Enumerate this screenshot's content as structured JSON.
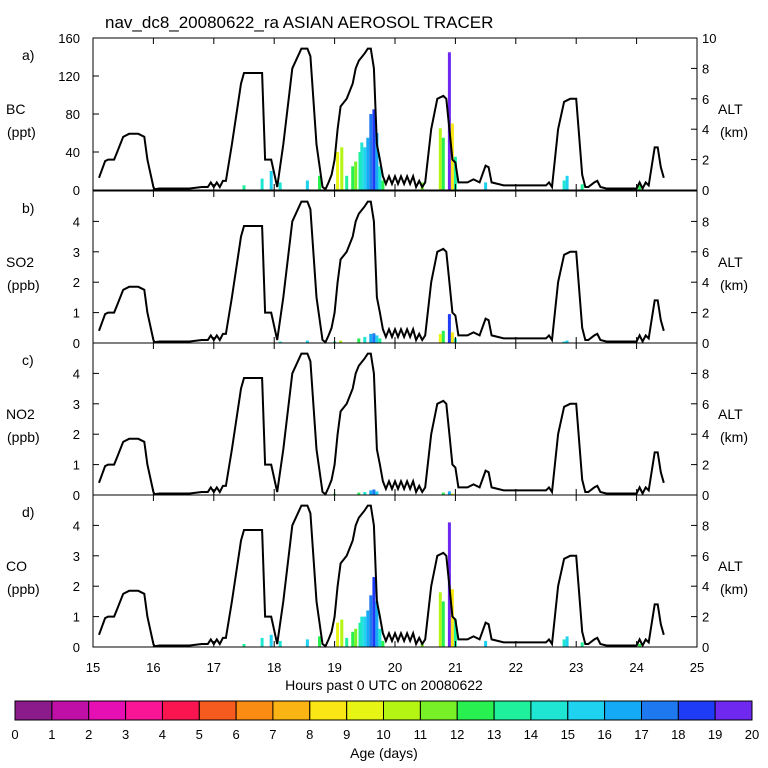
{
  "chart_data": {
    "type": "line",
    "title": "nav_dc8_20080622_ra ASIAN AEROSOL TRACER",
    "xlabel": "Hours past 0 UTC on 20080622",
    "xlim": [
      15,
      25
    ],
    "x_ticks": [
      15,
      16,
      17,
      18,
      19,
      20,
      21,
      22,
      23,
      24,
      25
    ],
    "right_axis": {
      "label": "ALT",
      "units": "(km)",
      "ylim": [
        0,
        10
      ]
    },
    "altitude_km": {
      "x": [
        15.1,
        15.2,
        15.25,
        15.35,
        15.4,
        15.5,
        15.6,
        15.75,
        15.85,
        15.9,
        16.0,
        16.02,
        16.1,
        16.6,
        16.8,
        16.9,
        16.95,
        17.0,
        17.05,
        17.1,
        17.15,
        17.2,
        17.3,
        17.45,
        17.5,
        17.6,
        17.8,
        17.85,
        17.95,
        18.05,
        18.15,
        18.3,
        18.45,
        18.55,
        18.6,
        18.7,
        18.8,
        18.85,
        18.9,
        18.95,
        19.0,
        19.05,
        19.1,
        19.2,
        19.3,
        19.35,
        19.4,
        19.5,
        19.55,
        19.6,
        19.65,
        19.7,
        19.75,
        19.8,
        19.85,
        19.9,
        19.95,
        20.0,
        20.05,
        20.1,
        20.15,
        20.2,
        20.25,
        20.3,
        20.35,
        20.4,
        20.45,
        20.5,
        20.6,
        20.7,
        20.8,
        20.85,
        20.9,
        20.95,
        21.0,
        21.05,
        21.1,
        21.2,
        21.3,
        21.4,
        21.5,
        21.55,
        21.6,
        21.7,
        21.8,
        22.0,
        22.2,
        22.3,
        22.4,
        22.5,
        22.55,
        22.6,
        22.7,
        22.8,
        22.9,
        23.0,
        23.1,
        23.15,
        23.2,
        23.3,
        23.35,
        23.4,
        23.5,
        23.7,
        23.8,
        24.0,
        24.05,
        24.1,
        24.15,
        24.2,
        24.3,
        24.35,
        24.4,
        24.45
      ],
      "y": [
        0.8,
        1.9,
        2.0,
        2.0,
        2.5,
        3.5,
        3.7,
        3.7,
        3.5,
        2.0,
        0.2,
        0.05,
        0.1,
        0.1,
        0.2,
        0.2,
        0.5,
        0.2,
        0.5,
        0.2,
        0.6,
        0.6,
        3.0,
        7.0,
        7.7,
        7.7,
        7.7,
        2.0,
        2.0,
        0.2,
        3.0,
        8.0,
        9.3,
        9.3,
        8.8,
        3.0,
        0.2,
        0.05,
        0.5,
        1.0,
        2.0,
        4.0,
        5.5,
        6.0,
        7.0,
        8.0,
        8.5,
        9.0,
        9.3,
        9.3,
        8.0,
        3.0,
        2.0,
        0.9,
        0.4,
        0.9,
        0.4,
        0.9,
        0.4,
        0.9,
        0.4,
        0.9,
        0.4,
        0.9,
        0.2,
        0.6,
        0.2,
        0.5,
        4.0,
        6.0,
        6.2,
        6.0,
        4.0,
        2.0,
        1.8,
        0.5,
        0.5,
        0.5,
        0.7,
        0.5,
        1.6,
        1.5,
        0.5,
        0.4,
        0.3,
        0.3,
        0.3,
        0.3,
        0.3,
        0.3,
        0.5,
        0.2,
        4.0,
        5.8,
        6.0,
        6.0,
        1.0,
        0.2,
        0.2,
        0.5,
        0.6,
        0.2,
        0.1,
        0.1,
        0.1,
        0.1,
        0.5,
        0.1,
        0.5,
        0.3,
        2.8,
        2.8,
        1.5,
        0.8
      ]
    },
    "panels": [
      {
        "label": "a)",
        "species": "BC",
        "units": "(ppt)",
        "ylim": [
          0,
          160
        ],
        "y_ticks": [
          0,
          40,
          80,
          120,
          160
        ],
        "tracer_bars": [
          {
            "x": 17.5,
            "v": 5,
            "age": 13
          },
          {
            "x": 17.8,
            "v": 12,
            "age": 14
          },
          {
            "x": 17.95,
            "v": 20,
            "age": 15
          },
          {
            "x": 18.1,
            "v": 8,
            "age": 14
          },
          {
            "x": 18.55,
            "v": 10,
            "age": 15
          },
          {
            "x": 18.75,
            "v": 15,
            "age": 12
          },
          {
            "x": 19.05,
            "v": 40,
            "age": 9
          },
          {
            "x": 19.12,
            "v": 45,
            "age": 10
          },
          {
            "x": 19.2,
            "v": 15,
            "age": 13
          },
          {
            "x": 19.3,
            "v": 25,
            "age": 12
          },
          {
            "x": 19.35,
            "v": 30,
            "age": 11
          },
          {
            "x": 19.42,
            "v": 40,
            "age": 13
          },
          {
            "x": 19.45,
            "v": 50,
            "age": 14
          },
          {
            "x": 19.5,
            "v": 45,
            "age": 15
          },
          {
            "x": 19.55,
            "v": 55,
            "age": 16
          },
          {
            "x": 19.6,
            "v": 80,
            "age": 17
          },
          {
            "x": 19.65,
            "v": 85,
            "age": 18
          },
          {
            "x": 19.7,
            "v": 60,
            "age": 16
          },
          {
            "x": 19.75,
            "v": 25,
            "age": 14
          },
          {
            "x": 19.8,
            "v": 10,
            "age": 12
          },
          {
            "x": 20.45,
            "v": 8,
            "age": 11
          },
          {
            "x": 20.75,
            "v": 65,
            "age": 10
          },
          {
            "x": 20.8,
            "v": 55,
            "age": 12
          },
          {
            "x": 20.9,
            "v": 145,
            "age": 19
          },
          {
            "x": 20.95,
            "v": 70,
            "age": 8
          },
          {
            "x": 21.0,
            "v": 35,
            "age": 13
          },
          {
            "x": 21.5,
            "v": 8,
            "age": 15
          },
          {
            "x": 22.8,
            "v": 10,
            "age": 14
          },
          {
            "x": 22.85,
            "v": 15,
            "age": 15
          },
          {
            "x": 23.1,
            "v": 6,
            "age": 13
          },
          {
            "x": 24.05,
            "v": 5,
            "age": 12
          }
        ]
      },
      {
        "label": "b)",
        "species": "SO2",
        "units": "(ppb)",
        "ylim": [
          0,
          5
        ],
        "y_ticks": [
          0,
          1,
          2,
          3,
          4
        ],
        "tracer_bars": [
          {
            "x": 18.1,
            "v": 0.05,
            "age": 14
          },
          {
            "x": 18.55,
            "v": 0.08,
            "age": 15
          },
          {
            "x": 19.0,
            "v": 0.05,
            "age": 13
          },
          {
            "x": 19.1,
            "v": 0.08,
            "age": 10
          },
          {
            "x": 19.4,
            "v": 0.15,
            "age": 12
          },
          {
            "x": 19.5,
            "v": 0.2,
            "age": 14
          },
          {
            "x": 19.6,
            "v": 0.3,
            "age": 16
          },
          {
            "x": 19.65,
            "v": 0.32,
            "age": 17
          },
          {
            "x": 19.7,
            "v": 0.25,
            "age": 15
          },
          {
            "x": 19.75,
            "v": 0.15,
            "age": 13
          },
          {
            "x": 20.75,
            "v": 0.3,
            "age": 9
          },
          {
            "x": 20.8,
            "v": 0.4,
            "age": 12
          },
          {
            "x": 20.9,
            "v": 0.95,
            "age": 18
          },
          {
            "x": 20.95,
            "v": 0.35,
            "age": 8
          },
          {
            "x": 21.0,
            "v": 0.15,
            "age": 14
          },
          {
            "x": 22.8,
            "v": 0.05,
            "age": 14
          },
          {
            "x": 22.85,
            "v": 0.08,
            "age": 15
          }
        ]
      },
      {
        "label": "c)",
        "species": "NO2",
        "units": "(ppb)",
        "ylim": [
          0,
          5
        ],
        "y_ticks": [
          0,
          1,
          2,
          3,
          4
        ],
        "tracer_bars": [
          {
            "x": 19.0,
            "v": 0.04,
            "age": 12
          },
          {
            "x": 19.4,
            "v": 0.08,
            "age": 12
          },
          {
            "x": 19.5,
            "v": 0.1,
            "age": 14
          },
          {
            "x": 19.6,
            "v": 0.15,
            "age": 16
          },
          {
            "x": 19.65,
            "v": 0.18,
            "age": 17
          },
          {
            "x": 19.7,
            "v": 0.12,
            "age": 15
          },
          {
            "x": 20.8,
            "v": 0.08,
            "age": 12
          },
          {
            "x": 20.9,
            "v": 0.12,
            "age": 16
          },
          {
            "x": 20.95,
            "v": 0.05,
            "age": 9
          }
        ]
      },
      {
        "label": "d)",
        "species": "CO",
        "units": "(ppb)",
        "ylim": [
          0,
          5
        ],
        "y_ticks": [
          0,
          1,
          2,
          3,
          4
        ],
        "tracer_bars": [
          {
            "x": 17.5,
            "v": 0.1,
            "age": 13
          },
          {
            "x": 17.8,
            "v": 0.3,
            "age": 14
          },
          {
            "x": 17.95,
            "v": 0.4,
            "age": 15
          },
          {
            "x": 18.1,
            "v": 0.2,
            "age": 14
          },
          {
            "x": 18.55,
            "v": 0.25,
            "age": 15
          },
          {
            "x": 18.75,
            "v": 0.35,
            "age": 12
          },
          {
            "x": 19.05,
            "v": 0.8,
            "age": 9
          },
          {
            "x": 19.12,
            "v": 0.9,
            "age": 10
          },
          {
            "x": 19.2,
            "v": 0.3,
            "age": 13
          },
          {
            "x": 19.3,
            "v": 0.5,
            "age": 12
          },
          {
            "x": 19.35,
            "v": 0.6,
            "age": 11
          },
          {
            "x": 19.42,
            "v": 0.8,
            "age": 13
          },
          {
            "x": 19.45,
            "v": 1.0,
            "age": 14
          },
          {
            "x": 19.5,
            "v": 1.0,
            "age": 15
          },
          {
            "x": 19.55,
            "v": 1.2,
            "age": 16
          },
          {
            "x": 19.6,
            "v": 1.7,
            "age": 17
          },
          {
            "x": 19.65,
            "v": 2.3,
            "age": 18
          },
          {
            "x": 19.7,
            "v": 1.5,
            "age": 16
          },
          {
            "x": 19.75,
            "v": 0.6,
            "age": 14
          },
          {
            "x": 19.8,
            "v": 0.2,
            "age": 12
          },
          {
            "x": 20.45,
            "v": 0.15,
            "age": 11
          },
          {
            "x": 20.75,
            "v": 1.8,
            "age": 10
          },
          {
            "x": 20.8,
            "v": 1.5,
            "age": 12
          },
          {
            "x": 20.9,
            "v": 4.1,
            "age": 19
          },
          {
            "x": 20.95,
            "v": 1.9,
            "age": 8
          },
          {
            "x": 21.0,
            "v": 0.9,
            "age": 13
          },
          {
            "x": 21.5,
            "v": 0.2,
            "age": 15
          },
          {
            "x": 22.8,
            "v": 0.25,
            "age": 14
          },
          {
            "x": 22.85,
            "v": 0.35,
            "age": 15
          },
          {
            "x": 23.1,
            "v": 0.15,
            "age": 13
          },
          {
            "x": 24.05,
            "v": 0.1,
            "age": 12
          }
        ]
      }
    ],
    "colorbar": {
      "label": "Age (days)",
      "ticks": [
        0,
        1,
        2,
        3,
        4,
        5,
        6,
        7,
        8,
        9,
        10,
        11,
        12,
        13,
        14,
        15,
        16,
        17,
        18,
        19,
        20
      ],
      "colors": [
        "#8b1a8b",
        "#bf0fa6",
        "#e60fb4",
        "#fa1496",
        "#fa1450",
        "#f55a1e",
        "#fa8c14",
        "#fab414",
        "#fae614",
        "#e6f514",
        "#b4f514",
        "#78f028",
        "#28f050",
        "#1ef09b",
        "#1ee6d2",
        "#1ed2f0",
        "#14aaf5",
        "#1e78f0",
        "#1e3cf5",
        "#6e28f0"
      ]
    }
  }
}
